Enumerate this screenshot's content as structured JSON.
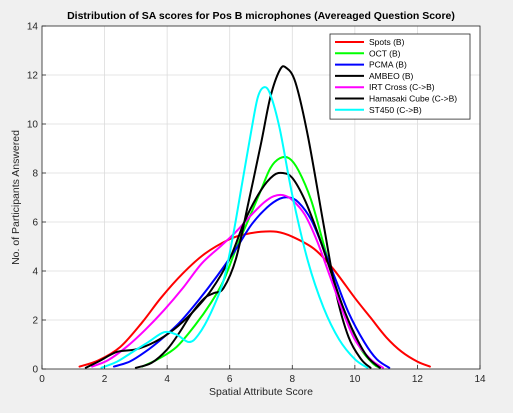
{
  "chart_data": {
    "type": "line",
    "title": "Distribution of SA scores for Pos B microphones (Avereaged Question Score)",
    "xlabel": "Spatial Attribute Score",
    "ylabel": "No. of Participants Answered",
    "xlim": [
      0,
      14
    ],
    "ylim": [
      0,
      14
    ],
    "xticks": [
      "0",
      "2",
      "4",
      "6",
      "8",
      "10",
      "12",
      "14"
    ],
    "yticks": [
      "0",
      "2",
      "4",
      "6",
      "8",
      "10",
      "12",
      "14"
    ],
    "grid": true,
    "legend_position": "top-right",
    "series": [
      {
        "name": "Spots (B)",
        "color": "#ff0000",
        "points": [
          [
            1.2,
            0.1
          ],
          [
            1.8,
            0.35
          ],
          [
            2.5,
            0.9
          ],
          [
            3.2,
            1.9
          ],
          [
            3.8,
            2.9
          ],
          [
            4.5,
            3.9
          ],
          [
            5.2,
            4.7
          ],
          [
            6.0,
            5.3
          ],
          [
            6.5,
            5.5
          ],
          [
            7.0,
            5.6
          ],
          [
            7.5,
            5.6
          ],
          [
            8.0,
            5.4
          ],
          [
            8.7,
            4.9
          ],
          [
            9.3,
            4.1
          ],
          [
            10.0,
            2.9
          ],
          [
            10.5,
            2.1
          ],
          [
            11.0,
            1.3
          ],
          [
            11.5,
            0.7
          ],
          [
            12.0,
            0.3
          ],
          [
            12.4,
            0.1
          ]
        ]
      },
      {
        "name": "OCT (B)",
        "color": "#00ff00",
        "points": [
          [
            3.2,
            0.1
          ],
          [
            3.7,
            0.4
          ],
          [
            4.3,
            0.9
          ],
          [
            4.9,
            1.8
          ],
          [
            5.4,
            2.7
          ],
          [
            5.8,
            3.6
          ],
          [
            6.2,
            4.9
          ],
          [
            6.6,
            6.1
          ],
          [
            7.0,
            7.3
          ],
          [
            7.3,
            8.2
          ],
          [
            7.6,
            8.6
          ],
          [
            7.9,
            8.6
          ],
          [
            8.2,
            8.1
          ],
          [
            8.6,
            6.9
          ],
          [
            9.0,
            5.1
          ],
          [
            9.4,
            3.3
          ],
          [
            9.8,
            1.9
          ],
          [
            10.2,
            0.8
          ],
          [
            10.6,
            0.2
          ],
          [
            10.8,
            0.05
          ]
        ]
      },
      {
        "name": "PCMA (B)",
        "color": "#0000ff",
        "points": [
          [
            2.3,
            0.1
          ],
          [
            2.8,
            0.3
          ],
          [
            3.3,
            0.7
          ],
          [
            3.8,
            1.2
          ],
          [
            4.4,
            1.9
          ],
          [
            5.0,
            2.8
          ],
          [
            5.6,
            3.8
          ],
          [
            6.2,
            4.9
          ],
          [
            6.7,
            5.9
          ],
          [
            7.2,
            6.6
          ],
          [
            7.6,
            6.95
          ],
          [
            7.9,
            7.0
          ],
          [
            8.2,
            6.8
          ],
          [
            8.6,
            6.1
          ],
          [
            9.0,
            4.9
          ],
          [
            9.4,
            3.6
          ],
          [
            9.8,
            2.3
          ],
          [
            10.3,
            1.1
          ],
          [
            10.7,
            0.4
          ],
          [
            11.1,
            0.05
          ]
        ]
      },
      {
        "name": "AMBEO (B)",
        "color": "#000000",
        "points": [
          [
            3.0,
            0.05
          ],
          [
            3.5,
            0.25
          ],
          [
            4.0,
            0.8
          ],
          [
            4.4,
            1.5
          ],
          [
            4.8,
            2.3
          ],
          [
            5.2,
            2.9
          ],
          [
            5.5,
            3.1
          ],
          [
            5.8,
            3.3
          ],
          [
            6.2,
            4.5
          ],
          [
            6.6,
            6.8
          ],
          [
            7.0,
            9.2
          ],
          [
            7.3,
            11.1
          ],
          [
            7.6,
            12.2
          ],
          [
            7.8,
            12.3
          ],
          [
            8.1,
            11.7
          ],
          [
            8.5,
            9.5
          ],
          [
            9.0,
            5.9
          ],
          [
            9.4,
            3.1
          ],
          [
            9.8,
            1.3
          ],
          [
            10.2,
            0.4
          ],
          [
            10.5,
            0.05
          ]
        ]
      },
      {
        "name": "IRT Cross (C->B)",
        "color": "#ff00ff",
        "points": [
          [
            1.6,
            0.1
          ],
          [
            2.1,
            0.35
          ],
          [
            2.7,
            0.9
          ],
          [
            3.3,
            1.6
          ],
          [
            3.9,
            2.4
          ],
          [
            4.5,
            3.3
          ],
          [
            5.1,
            4.3
          ],
          [
            5.7,
            5.0
          ],
          [
            6.2,
            5.6
          ],
          [
            6.7,
            6.3
          ],
          [
            7.1,
            6.8
          ],
          [
            7.4,
            7.05
          ],
          [
            7.7,
            7.1
          ],
          [
            8.0,
            6.9
          ],
          [
            8.4,
            6.3
          ],
          [
            8.8,
            5.2
          ],
          [
            9.2,
            3.8
          ],
          [
            9.6,
            2.4
          ],
          [
            10.0,
            1.2
          ],
          [
            10.5,
            0.4
          ],
          [
            10.9,
            0.05
          ]
        ]
      },
      {
        "name": "Hamasaki Cube (C->B)",
        "color": "#000000",
        "points": [
          [
            1.4,
            0.05
          ],
          [
            1.8,
            0.3
          ],
          [
            2.4,
            0.7
          ],
          [
            3.0,
            0.8
          ],
          [
            3.6,
            1.1
          ],
          [
            4.2,
            1.6
          ],
          [
            4.8,
            2.3
          ],
          [
            5.4,
            3.2
          ],
          [
            6.0,
            4.5
          ],
          [
            6.5,
            6.1
          ],
          [
            7.0,
            7.3
          ],
          [
            7.4,
            7.9
          ],
          [
            7.7,
            8.0
          ],
          [
            8.0,
            7.8
          ],
          [
            8.4,
            6.9
          ],
          [
            8.8,
            5.6
          ],
          [
            9.2,
            4.1
          ],
          [
            9.6,
            2.6
          ],
          [
            10.0,
            1.4
          ],
          [
            10.4,
            0.5
          ],
          [
            10.8,
            0.05
          ]
        ]
      },
      {
        "name": "ST450 (C->B)",
        "color": "#00ffff",
        "points": [
          [
            1.9,
            0.05
          ],
          [
            2.4,
            0.3
          ],
          [
            2.9,
            0.7
          ],
          [
            3.4,
            1.1
          ],
          [
            3.9,
            1.5
          ],
          [
            4.3,
            1.4
          ],
          [
            4.7,
            1.1
          ],
          [
            5.0,
            1.4
          ],
          [
            5.4,
            2.3
          ],
          [
            5.8,
            3.6
          ],
          [
            6.1,
            5.4
          ],
          [
            6.4,
            7.6
          ],
          [
            6.7,
            9.8
          ],
          [
            6.9,
            11.1
          ],
          [
            7.1,
            11.5
          ],
          [
            7.3,
            11.2
          ],
          [
            7.6,
            9.8
          ],
          [
            8.0,
            7.1
          ],
          [
            8.5,
            4.4
          ],
          [
            9.0,
            2.5
          ],
          [
            9.5,
            1.2
          ],
          [
            10.0,
            0.4
          ],
          [
            10.4,
            0.05
          ]
        ]
      }
    ]
  }
}
